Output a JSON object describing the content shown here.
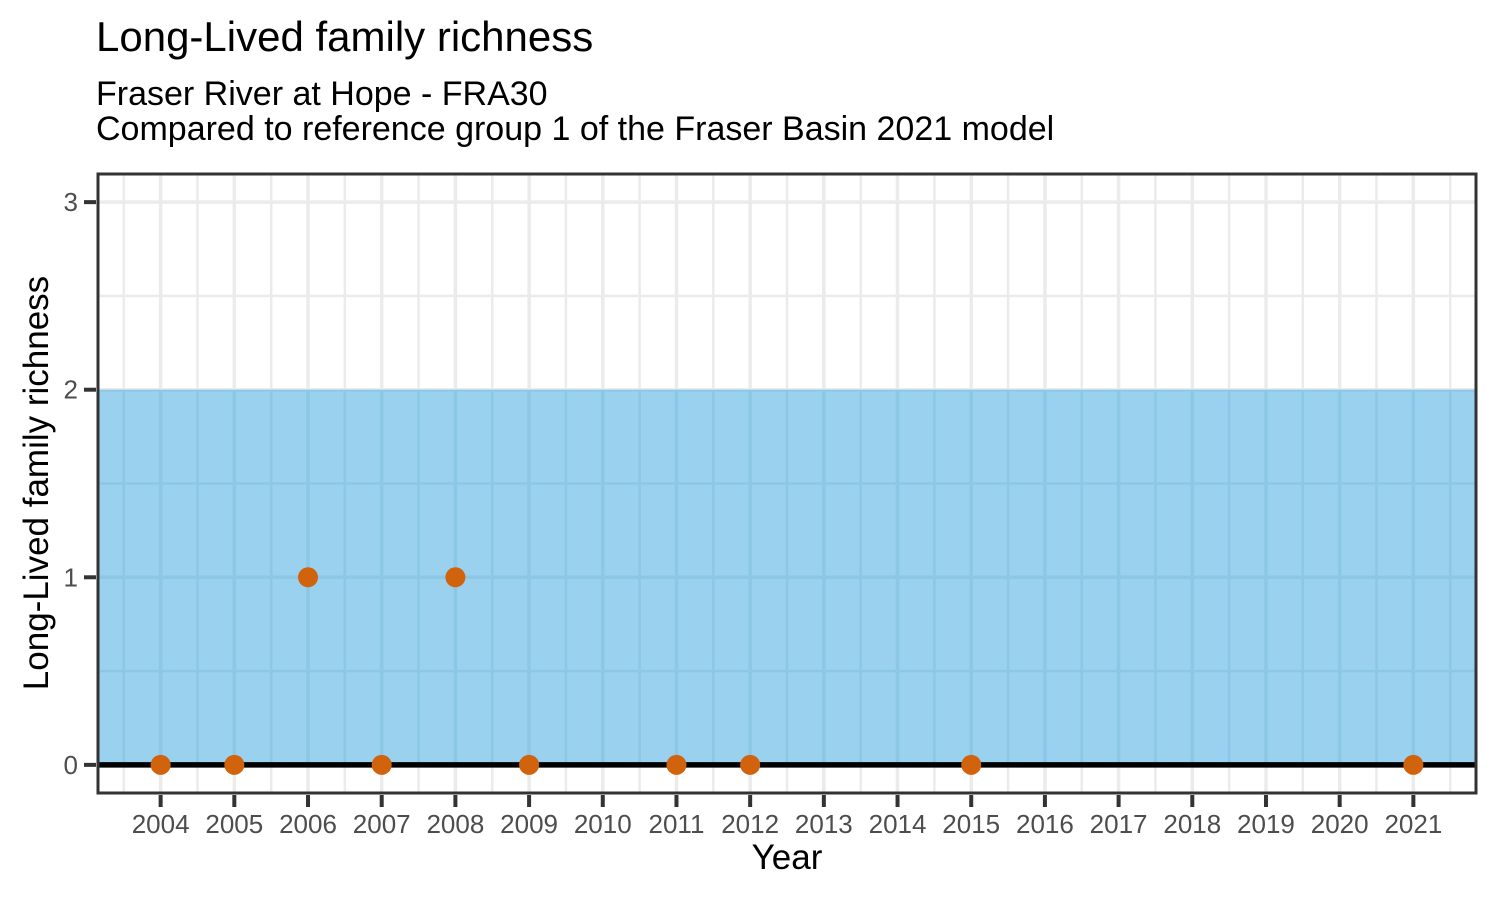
{
  "chart_data": {
    "type": "scatter",
    "title": "Long-Lived family richness",
    "subtitle_lines": [
      "Fraser River at Hope - FRA30",
      "Compared to reference group 1 of the Fraser Basin 2021 model"
    ],
    "xlabel": "Year",
    "ylabel": "Long-Lived family richness",
    "xlim": [
      2003.15,
      2021.85
    ],
    "ylim": [
      -0.15,
      3.15
    ],
    "x_ticks": [
      2004,
      2005,
      2006,
      2007,
      2008,
      2009,
      2010,
      2011,
      2012,
      2013,
      2014,
      2015,
      2016,
      2017,
      2018,
      2019,
      2020,
      2021
    ],
    "y_ticks": [
      0,
      1,
      2,
      3
    ],
    "grid": {
      "major": true,
      "minor": true
    },
    "legend": "none",
    "reference_band": {
      "ymin": 0,
      "ymax": 2,
      "fill": "#99D1EF",
      "grid_tint": "#8DC7E6"
    },
    "zero_line": {
      "y": 0,
      "color": "#000000"
    },
    "points": [
      {
        "year": 2004,
        "value": 0
      },
      {
        "year": 2005,
        "value": 0
      },
      {
        "year": 2006,
        "value": 1
      },
      {
        "year": 2007,
        "value": 0
      },
      {
        "year": 2008,
        "value": 1
      },
      {
        "year": 2009,
        "value": 0
      },
      {
        "year": 2011,
        "value": 0
      },
      {
        "year": 2012,
        "value": 0
      },
      {
        "year": 2015,
        "value": 0
      },
      {
        "year": 2021,
        "value": 0
      }
    ],
    "colors": {
      "background": "#FFFFFF",
      "panel_border": "#333333",
      "grid_major": "#EBEBEB",
      "grid_minor": "#EBEBEB",
      "tick_mark": "#333333",
      "tick_label": "#4D4D4D",
      "point": "#D2630D",
      "zero_line": "#000000",
      "text": "#000000"
    }
  }
}
